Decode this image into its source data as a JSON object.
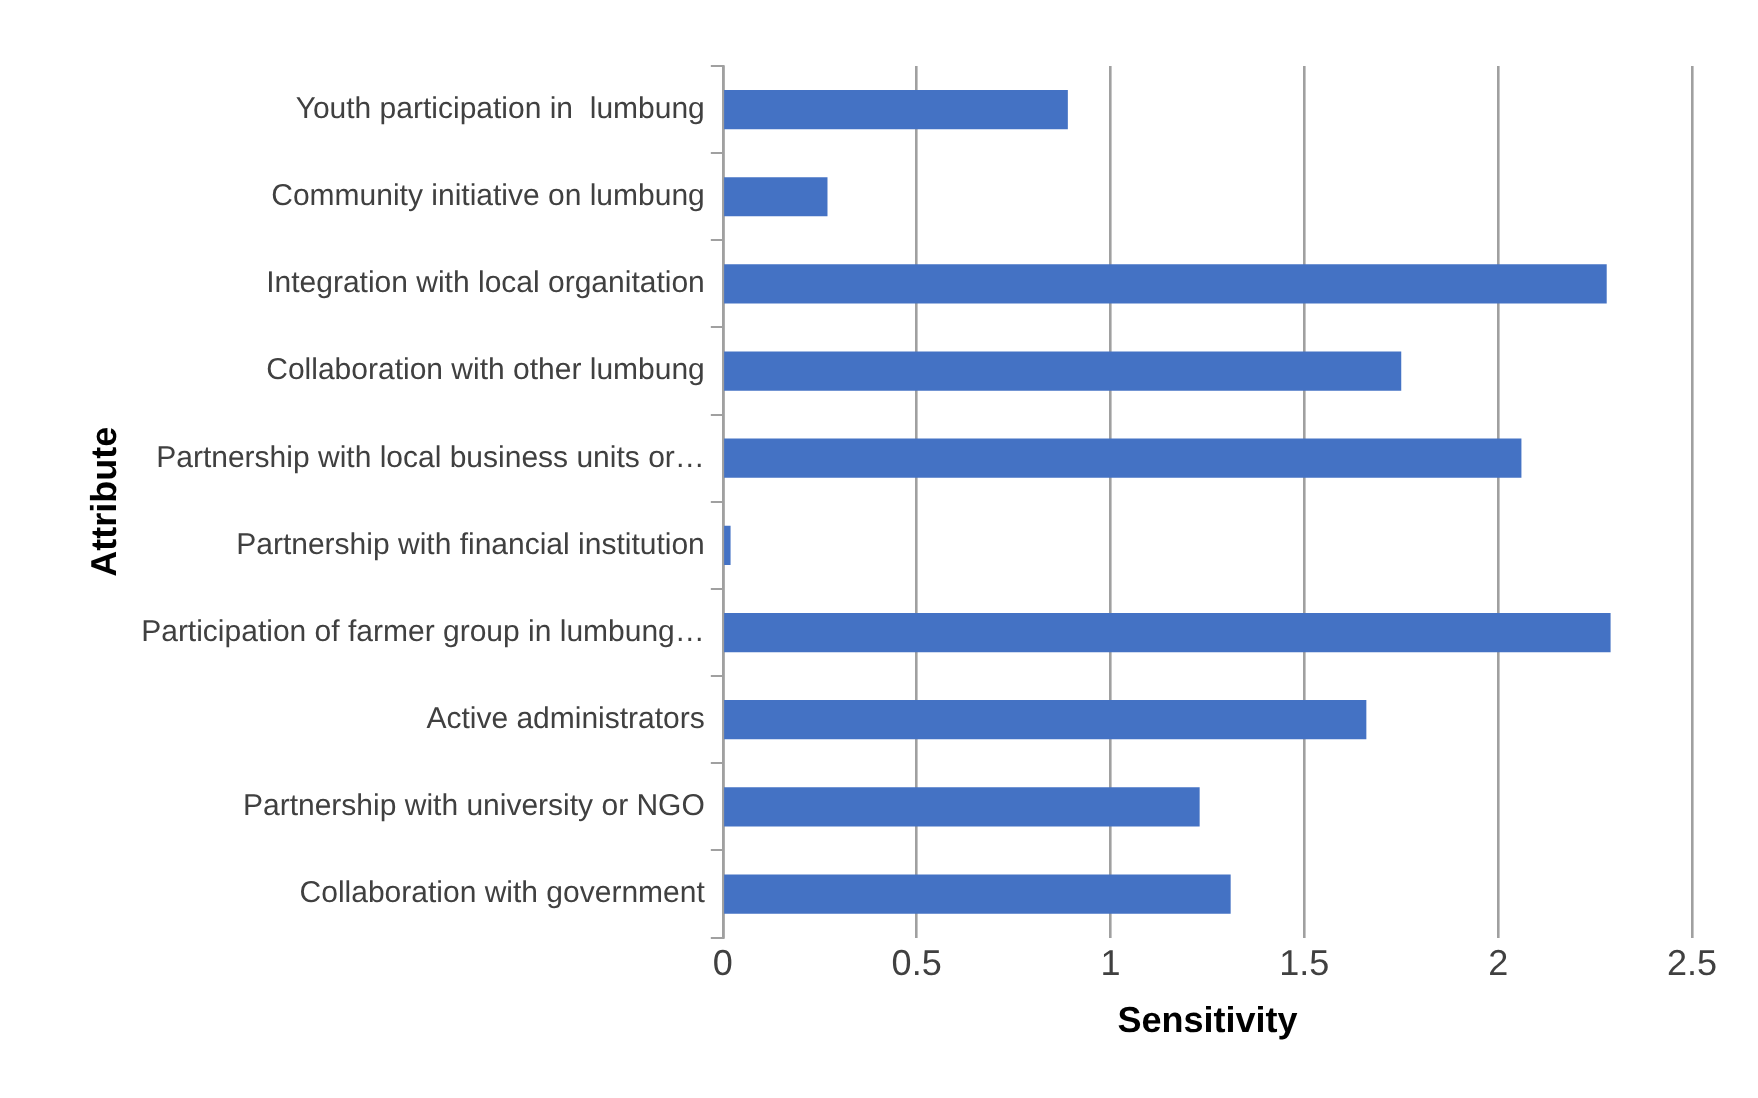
{
  "chart_data": {
    "type": "bar",
    "orientation": "horizontal",
    "xlabel": "Sensitivity",
    "ylabel": "Attribute",
    "categories": [
      "Youth participation in  lumbung",
      "Community initiative on lumbung",
      "Integration with local organitation",
      "Collaboration with other lumbung",
      "Partnership with local business units or…",
      "Partnership with financial institution",
      "Participation of farmer group in lumbung…",
      "Active administrators",
      "Partnership with university or NGO",
      "Collaboration with government"
    ],
    "values": [
      0.89,
      0.27,
      2.28,
      1.75,
      2.06,
      0.02,
      2.29,
      1.66,
      1.23,
      1.31
    ],
    "color": "#4472c4",
    "xlim": [
      0,
      2.5
    ],
    "xticks": [
      0,
      0.5,
      1,
      1.5,
      2,
      2.5
    ],
    "grid": "x",
    "legend": false
  }
}
